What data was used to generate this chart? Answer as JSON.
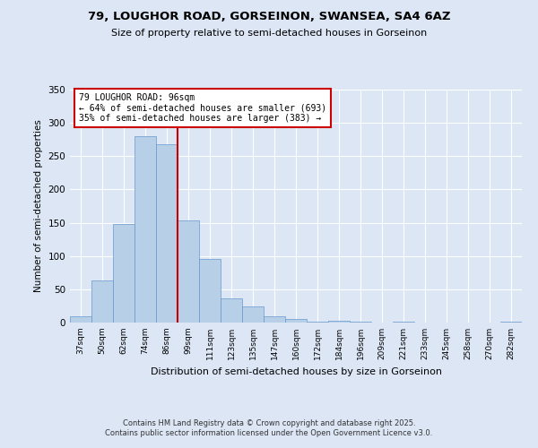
{
  "title1": "79, LOUGHOR ROAD, GORSEINON, SWANSEA, SA4 6AZ",
  "title2": "Size of property relative to semi-detached houses in Gorseinon",
  "xlabel": "Distribution of semi-detached houses by size in Gorseinon",
  "ylabel": "Number of semi-detached properties",
  "categories": [
    "37sqm",
    "50sqm",
    "62sqm",
    "74sqm",
    "86sqm",
    "99sqm",
    "111sqm",
    "123sqm",
    "135sqm",
    "147sqm",
    "160sqm",
    "172sqm",
    "184sqm",
    "196sqm",
    "209sqm",
    "221sqm",
    "233sqm",
    "245sqm",
    "258sqm",
    "270sqm",
    "282sqm"
  ],
  "values": [
    10,
    63,
    148,
    280,
    268,
    153,
    95,
    36,
    24,
    9,
    5,
    1,
    3,
    1,
    0,
    1,
    0,
    0,
    0,
    0,
    2
  ],
  "bar_color": "#b8cfe8",
  "bar_edge_color": "#6699cc",
  "vline_color": "#cc0000",
  "annotation_title": "79 LOUGHOR ROAD: 96sqm",
  "annotation_line1": "← 64% of semi-detached houses are smaller (693)",
  "annotation_line2": "35% of semi-detached houses are larger (383) →",
  "annotation_box_facecolor": "#ffffff",
  "annotation_box_edgecolor": "#cc0000",
  "footer1": "Contains HM Land Registry data © Crown copyright and database right 2025.",
  "footer2": "Contains public sector information licensed under the Open Government Licence v3.0.",
  "bg_color": "#dce6f5",
  "ylim": [
    0,
    350
  ],
  "yticks": [
    0,
    50,
    100,
    150,
    200,
    250,
    300,
    350
  ]
}
